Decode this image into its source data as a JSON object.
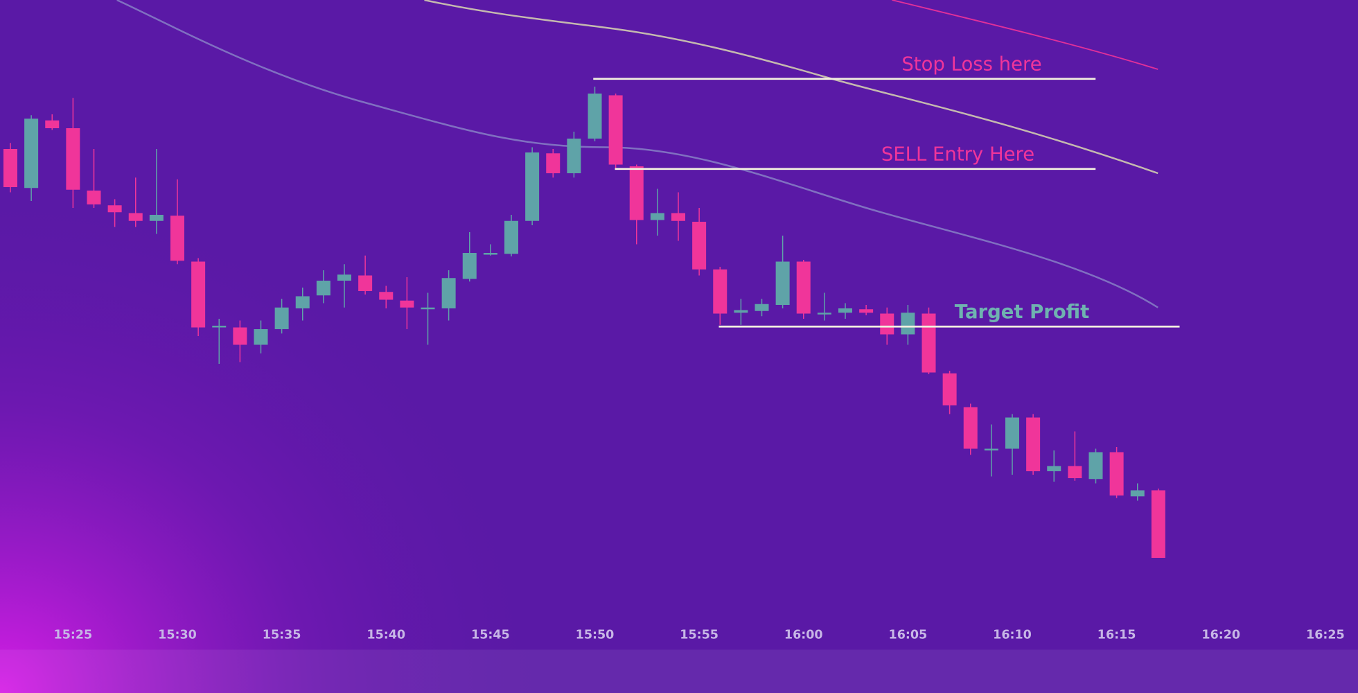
{
  "chart_data": {
    "type": "candlestick",
    "categories": [
      null,
      null,
      null,
      "15:25",
      null,
      null,
      null,
      null,
      "15:30",
      null,
      null,
      null,
      null,
      "15:35",
      null,
      null,
      null,
      null,
      "15:40",
      null,
      null,
      null,
      null,
      "15:45",
      null,
      null,
      null,
      null,
      "15:50",
      null,
      null,
      null,
      null,
      "15:55",
      null,
      null,
      null,
      null,
      "16:00",
      null,
      null,
      null,
      null,
      "16:05",
      null,
      null,
      null,
      null,
      "16:10",
      null,
      null,
      null,
      null,
      "16:15",
      null,
      null,
      null,
      null,
      "16:20",
      null,
      null,
      null,
      null,
      "16:25"
    ],
    "open": [
      628,
      583,
      661,
      652,
      580,
      563,
      554,
      545,
      551,
      498,
      422,
      422,
      402,
      420,
      444,
      459,
      476,
      482,
      463,
      453,
      444,
      444,
      478,
      507,
      507,
      545,
      623,
      600,
      640,
      690,
      608,
      546,
      554,
      544,
      489,
      439,
      441,
      448,
      498,
      437,
      439,
      443,
      438,
      414,
      438,
      369,
      330,
      282,
      282,
      318,
      256,
      262,
      247,
      278,
      227,
      234,
      null,
      null,
      null,
      null,
      null,
      null,
      null,
      null
    ],
    "high": [
      635,
      667,
      668,
      687,
      628,
      570,
      595,
      628,
      593,
      502,
      432,
      430,
      430,
      455,
      468,
      488,
      495,
      505,
      470,
      480,
      462,
      488,
      532,
      518,
      552,
      630,
      628,
      648,
      700,
      692,
      610,
      582,
      578,
      560,
      492,
      455,
      455,
      528,
      500,
      462,
      450,
      448,
      445,
      448,
      445,
      372,
      334,
      310,
      322,
      322,
      280,
      302,
      282,
      284,
      242,
      236,
      null,
      null,
      null,
      null,
      null,
      null,
      null,
      null
    ],
    "low": [
      578,
      568,
      650,
      560,
      560,
      538,
      538,
      530,
      495,
      412,
      380,
      382,
      392,
      415,
      430,
      450,
      445,
      460,
      444,
      420,
      402,
      430,
      475,
      505,
      504,
      540,
      595,
      595,
      637,
      604,
      518,
      528,
      522,
      482,
      425,
      425,
      435,
      444,
      432,
      430,
      432,
      436,
      402,
      402,
      368,
      322,
      275,
      250,
      252,
      252,
      244,
      245,
      242,
      225,
      222,
      156,
      null,
      null,
      null,
      null,
      null,
      null,
      null,
      null
    ],
    "close": [
      584,
      663,
      652,
      581,
      564,
      555,
      545,
      552,
      499,
      422,
      424,
      402,
      420,
      445,
      458,
      476,
      483,
      464,
      454,
      445,
      445,
      479,
      508,
      508,
      545,
      624,
      600,
      640,
      692,
      610,
      546,
      554,
      545,
      489,
      438,
      442,
      449,
      498,
      438,
      439,
      444,
      439,
      414,
      439,
      370,
      332,
      282,
      282,
      318,
      256,
      262,
      248,
      278,
      228,
      234,
      156,
      null,
      null,
      null,
      null,
      null,
      null,
      null,
      null
    ],
    "colors": {
      "up": "#5fa3a8",
      "down": "#f0359a"
    },
    "ylim": [
      0,
      800
    ],
    "levels": [
      {
        "label": "Stop Loss here",
        "value": 709,
        "color": "#f0359a"
      },
      {
        "label": "SELL Entry Here",
        "value": 605,
        "color": "#f0359a"
      },
      {
        "label": "Target Profit",
        "value": 423,
        "color": "#6fb3b0"
      }
    ]
  }
}
